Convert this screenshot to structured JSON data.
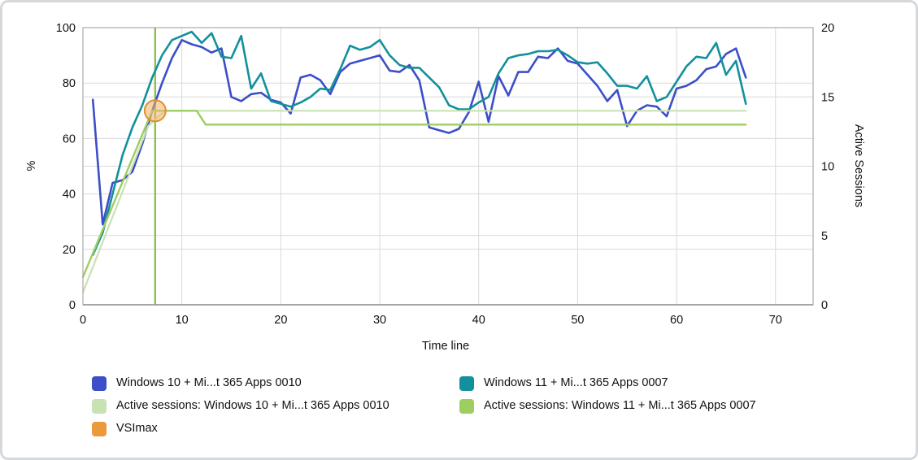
{
  "chart_data": {
    "type": "line",
    "title": "",
    "xlabel": "Time line",
    "ylabel_left": "%",
    "ylabel_right": "Active Sessions",
    "xlim": [
      0,
      73.8
    ],
    "ylim_left": [
      0,
      100
    ],
    "ylim_right": [
      0,
      20
    ],
    "x_ticks": [
      0,
      10,
      20,
      30,
      40,
      50,
      60,
      70
    ],
    "y_left_ticks": [
      0,
      20,
      40,
      60,
      80,
      100
    ],
    "y_right_ticks": [
      0,
      5,
      10,
      15,
      20
    ],
    "grid": true,
    "legend_position": "bottom",
    "series": [
      {
        "name": "Windows 10 + Mi...t 365 Apps 0010",
        "color": "#3c4ec8",
        "axis": "left",
        "width": 2.6,
        "x_start": 1,
        "x_step": 1,
        "values": [
          74,
          29,
          44,
          45,
          48,
          58,
          70,
          80,
          89,
          95.5,
          94,
          93,
          91,
          92.5,
          75,
          73.5,
          76,
          76.5,
          74,
          73,
          69,
          82,
          83,
          81,
          76,
          84,
          87,
          88,
          89,
          90,
          84.5,
          84,
          86.5,
          81,
          64,
          63,
          62,
          63.5,
          69.5,
          80.5,
          66,
          82.5,
          75.5,
          84,
          84,
          89.5,
          89,
          92.5,
          88,
          87,
          83,
          79,
          73.5,
          77.5,
          64.5,
          70,
          72,
          71.5,
          68,
          78,
          79,
          81,
          85,
          86,
          90.5,
          92.5,
          82
        ]
      },
      {
        "name": "Windows 11 + Mi...t 365 Apps 0007",
        "color": "#12909b",
        "axis": "left",
        "width": 2.6,
        "x_start": 1,
        "x_step": 1,
        "values": [
          18,
          26,
          40,
          54,
          64,
          72,
          82,
          90,
          95.5,
          97,
          98.5,
          94.5,
          98,
          89.5,
          89,
          97,
          78,
          83.5,
          73.5,
          72.5,
          71.5,
          73,
          75,
          78,
          77.5,
          85,
          93.5,
          92,
          93,
          95.5,
          90,
          86.5,
          85.5,
          85.5,
          82,
          78.5,
          72,
          70.5,
          70.5,
          73,
          75,
          83.5,
          89,
          90,
          90.5,
          91.5,
          91.5,
          92,
          90,
          87.5,
          87,
          87.5,
          83.5,
          79,
          79,
          78,
          82.5,
          73.5,
          75,
          80.5,
          86,
          89.5,
          89,
          94.5,
          83,
          88,
          72.5
        ]
      },
      {
        "name": "Active sessions: Windows 10 + Mi...t 365 Apps 0010",
        "color": "#c8e2b3",
        "axis": "right",
        "width": 2.2,
        "points": [
          [
            0,
            0.9
          ],
          [
            6.6,
            12.9
          ],
          [
            8.3,
            14
          ],
          [
            67,
            14
          ]
        ]
      },
      {
        "name": "Active sessions: Windows 11 + Mi...t 365 Apps 0007",
        "color": "#9ecd60",
        "axis": "right",
        "width": 2.4,
        "points": [
          [
            0,
            2
          ],
          [
            7,
            14
          ],
          [
            11.5,
            14
          ],
          [
            12.4,
            13
          ],
          [
            67,
            13
          ]
        ]
      }
    ],
    "vsimax_marker": {
      "label": "VSImax",
      "x": 7.3,
      "value_pct": 70,
      "sessions": 14,
      "line_color": "#8cc152",
      "marker_fill": "#f2b367",
      "marker_stroke": "#e0912f"
    },
    "grid_color": "#d9d9d9",
    "border_color": "#ababab"
  },
  "legend": {
    "items": [
      {
        "label": "Windows 10 + Mi...t 365 Apps 0010",
        "color": "#3c4ec8"
      },
      {
        "label": "Windows 11 + Mi...t 365 Apps 0007",
        "color": "#12909b"
      },
      {
        "label": "Active sessions: Windows 10 + Mi...t 365 Apps 0010",
        "color": "#c8e2b3"
      },
      {
        "label": "Active sessions: Windows 11 + Mi...t 365 Apps 0007",
        "color": "#9ecd60"
      },
      {
        "label": "VSImax",
        "color": "#ea9a3c"
      }
    ]
  }
}
